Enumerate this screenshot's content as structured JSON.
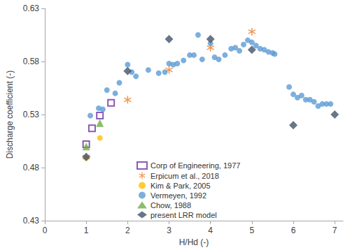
{
  "chart_data": {
    "type": "scatter",
    "x_label": "H/Hd (-)",
    "y_label": "Discharge coefficient (-)",
    "xlim": [
      0,
      7.2
    ],
    "xticks": [
      0,
      1,
      2,
      3,
      4,
      5,
      6,
      7
    ],
    "ylim": [
      0.43,
      0.63
    ],
    "yticks": [
      0.43,
      0.48,
      0.53,
      0.58,
      0.63
    ],
    "grid": false,
    "legend": "bottom",
    "series": [
      {
        "name": "Corp of Engineering, 1977",
        "color": "#7030a0",
        "marker": "square-open",
        "x": [
          1,
          1.14,
          1.33,
          1.6
        ],
        "values": [
          0.502,
          0.517,
          0.529,
          0.541
        ]
      },
      {
        "name": "Erpicum et al., 2018",
        "color": "#ed7d31",
        "marker": "asterisk",
        "x": [
          1,
          2,
          3,
          4,
          5
        ],
        "values": [
          0.49,
          0.544,
          0.572,
          0.593,
          0.608
        ]
      },
      {
        "name": "Kim & Park, 2005",
        "color": "#ffc000",
        "marker": "circle",
        "x": [
          1,
          1.33
        ],
        "values": [
          0.489,
          0.508
        ]
      },
      {
        "name": "Vermeyen, 1992",
        "color": "#5b9bd5",
        "marker": "circle",
        "x": [
          1.1,
          1.3,
          1.4,
          1.5,
          1.7,
          1.8,
          2,
          2.1,
          2.2,
          2.5,
          2.75,
          2.9,
          3,
          3.1,
          3.2,
          3.35,
          3.5,
          3.6,
          3.7,
          3.8,
          4,
          4.1,
          4.2,
          4.35,
          4.5,
          4.6,
          4.7,
          4.8,
          4.9,
          5,
          5.1,
          5.2,
          5.3,
          5.4,
          5.5,
          5.55,
          5.9,
          6,
          6.1,
          6.2,
          6.3,
          6.4,
          6.5,
          6.6,
          6.7,
          6.8,
          6.9
        ],
        "values": [
          0.529,
          0.536,
          0.535,
          0.553,
          0.55,
          0.56,
          0.577,
          0.57,
          0.566,
          0.572,
          0.569,
          0.57,
          0.578,
          0.577,
          0.578,
          0.581,
          0.586,
          0.586,
          0.605,
          0.582,
          0.597,
          0.584,
          0.582,
          0.586,
          0.592,
          0.593,
          0.59,
          0.596,
          0.6,
          0.598,
          0.595,
          0.592,
          0.591,
          0.589,
          0.588,
          0.587,
          0.556,
          0.549,
          0.546,
          0.548,
          0.544,
          0.544,
          0.542,
          0.538,
          0.54,
          0.54,
          0.54
        ]
      },
      {
        "name": "Chow, 1988",
        "color": "#70ad47",
        "marker": "triangle",
        "x": [
          1,
          1.33
        ],
        "values": [
          0.5,
          0.522
        ]
      },
      {
        "name": "present LRR model",
        "color": "#44546a",
        "marker": "diamond",
        "x": [
          1,
          2,
          3,
          4,
          5,
          6,
          7
        ],
        "values": [
          0.49,
          0.571,
          0.601,
          0.601,
          0.591,
          0.52,
          0.53
        ]
      }
    ]
  }
}
